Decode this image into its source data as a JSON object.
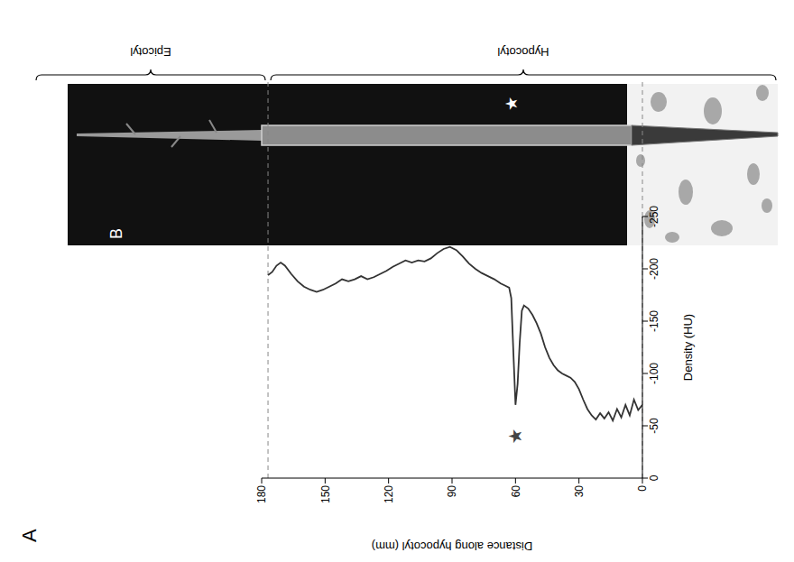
{
  "chart_data": {
    "type": "line",
    "panel_label": "A",
    "x_label": "Density (HU)",
    "y_label": "Distance along hypocotyl (mm)",
    "xlim": [
      0,
      -250
    ],
    "xticks": [
      0,
      -50,
      -100,
      -150,
      -200,
      -250
    ],
    "ylim": [
      0,
      180
    ],
    "yticks": [
      0,
      30,
      60,
      90,
      120,
      150,
      180
    ],
    "color": "#333333",
    "grid": false,
    "hlines": [
      0,
      177
    ],
    "annotations": [
      {
        "text": "★",
        "x": -40,
        "y": 60
      }
    ],
    "x": [
      -70,
      -65,
      -75,
      -60,
      -70,
      -58,
      -66,
      -55,
      -63,
      -57,
      -62,
      -56,
      -60,
      -66,
      -75,
      -85,
      -92,
      -96,
      -98,
      -100,
      -103,
      -108,
      -115,
      -125,
      -138,
      -148,
      -156,
      -162,
      -165,
      -160,
      -130,
      -90,
      -70,
      -120,
      -172,
      -182,
      -184,
      -186,
      -190,
      -193,
      -196,
      -200,
      -205,
      -212,
      -218,
      -221,
      -219,
      -215,
      -210,
      -207,
      -208,
      -206,
      -208,
      -205,
      -202,
      -198,
      -195,
      -192,
      -190,
      -193,
      -190,
      -188,
      -190,
      -186,
      -183,
      -180,
      -178,
      -180,
      -183,
      -188,
      -195,
      -203,
      -206,
      -203,
      -197,
      -194
    ],
    "y": [
      0,
      2,
      4,
      6,
      8,
      10,
      12,
      14,
      16,
      18,
      20,
      22,
      24,
      26,
      28,
      30,
      32,
      34,
      36,
      38,
      40,
      42,
      44,
      46,
      48,
      50,
      52,
      54,
      56,
      57,
      58,
      59,
      60,
      61,
      62,
      63,
      65,
      67,
      70,
      73,
      76,
      79,
      82,
      85,
      88,
      91,
      94,
      97,
      100,
      103,
      106,
      109,
      112,
      115,
      118,
      121,
      124,
      127,
      130,
      133,
      136,
      139,
      142,
      145,
      148,
      151,
      154,
      157,
      160,
      163,
      166,
      169,
      171,
      173,
      175,
      177
    ]
  },
  "image_panel": {
    "panel_label": "B",
    "labels": [
      "Epicotyl",
      "Hypocotyl"
    ],
    "annotations": [
      "★"
    ]
  }
}
